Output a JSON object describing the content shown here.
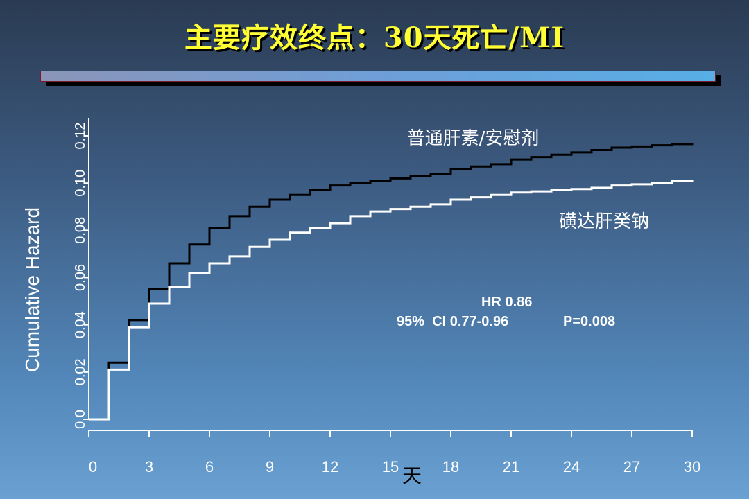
{
  "slide": {
    "title": "主要疗效终点：30天死亡/MI",
    "colors": {
      "title": "#ffff33",
      "background_top": "#2a3b52",
      "background_bottom": "#6aa0d2"
    }
  },
  "chart_data": {
    "type": "line",
    "step": true,
    "title": "",
    "xlabel": "天",
    "ylabel": "Cumulative Hazard",
    "xlim": [
      0,
      30
    ],
    "ylim": [
      0,
      0.12
    ],
    "xticks": [
      0,
      3,
      6,
      9,
      12,
      15,
      18,
      21,
      24,
      27,
      30
    ],
    "xtick_labels": [
      "0",
      "3",
      "6",
      "9",
      "12",
      "15",
      "18",
      "21",
      "24",
      "27",
      "30"
    ],
    "yticks": [
      0,
      0.02,
      0.04,
      0.06,
      0.08,
      0.1,
      0.12
    ],
    "ytick_labels": [
      "0.0",
      "0.02",
      "0.04",
      "0.06",
      "0.08",
      "0.10",
      "0.12"
    ],
    "grid": false,
    "series": [
      {
        "name": "普通肝素/安慰剂",
        "color": "#000000",
        "x": [
          0,
          1,
          2,
          3,
          4,
          5,
          6,
          7,
          8,
          9,
          10,
          11,
          12,
          13,
          14,
          15,
          16,
          17,
          18,
          19,
          20,
          21,
          22,
          23,
          24,
          25,
          26,
          27,
          28,
          29,
          30
        ],
        "y": [
          0,
          0.024,
          0.042,
          0.055,
          0.066,
          0.074,
          0.081,
          0.086,
          0.09,
          0.093,
          0.095,
          0.097,
          0.099,
          0.1,
          0.101,
          0.102,
          0.103,
          0.104,
          0.106,
          0.107,
          0.108,
          0.11,
          0.111,
          0.112,
          0.113,
          0.114,
          0.115,
          0.1155,
          0.116,
          0.1165,
          0.117
        ]
      },
      {
        "name": "磺达肝癸钠",
        "color": "#ffffff",
        "x": [
          0,
          1,
          2,
          3,
          4,
          5,
          6,
          7,
          8,
          9,
          10,
          11,
          12,
          13,
          14,
          15,
          16,
          17,
          18,
          19,
          20,
          21,
          22,
          23,
          24,
          25,
          26,
          27,
          28,
          29,
          30
        ],
        "y": [
          0,
          0.021,
          0.039,
          0.049,
          0.056,
          0.062,
          0.066,
          0.069,
          0.073,
          0.076,
          0.079,
          0.081,
          0.083,
          0.086,
          0.088,
          0.089,
          0.09,
          0.091,
          0.093,
          0.094,
          0.095,
          0.096,
          0.0965,
          0.097,
          0.0975,
          0.098,
          0.099,
          0.0995,
          0.1,
          0.101,
          0.1015
        ]
      }
    ],
    "annotations": {
      "hr": "HR 0.86",
      "ci": "95%  CI 0.77-0.96",
      "p": "P=0.008"
    }
  }
}
